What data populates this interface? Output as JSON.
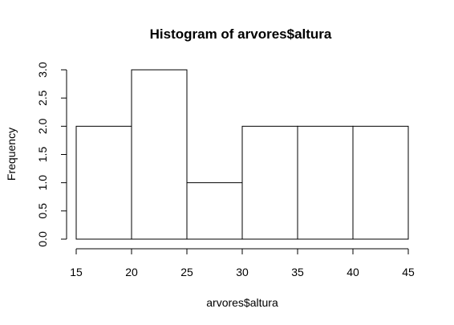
{
  "chart_data": {
    "type": "histogram",
    "title": "Histogram of arvores$altura",
    "xlabel": "arvores$altura",
    "ylabel": "Frequency",
    "bins": [
      {
        "from": 15,
        "to": 20,
        "count": 2
      },
      {
        "from": 20,
        "to": 25,
        "count": 3
      },
      {
        "from": 25,
        "to": 30,
        "count": 1
      },
      {
        "from": 30,
        "to": 35,
        "count": 2
      },
      {
        "from": 35,
        "to": 40,
        "count": 2
      },
      {
        "from": 40,
        "to": 45,
        "count": 2
      }
    ],
    "xlim": [
      15,
      45
    ],
    "ylim": [
      0,
      3
    ],
    "xticks": [
      15,
      20,
      25,
      30,
      35,
      40,
      45
    ],
    "xtick_labels": [
      "15",
      "20",
      "25",
      "30",
      "35",
      "40",
      "45"
    ],
    "yticks": [
      0,
      0.5,
      1,
      1.5,
      2,
      2.5,
      3
    ],
    "ytick_labels": [
      "0.0",
      "0.5",
      "1.0",
      "1.5",
      "2.0",
      "2.5",
      "3.0"
    ],
    "bar_fill": "#ffffff",
    "bar_stroke": "#000000",
    "grid": false,
    "legend": "none"
  }
}
